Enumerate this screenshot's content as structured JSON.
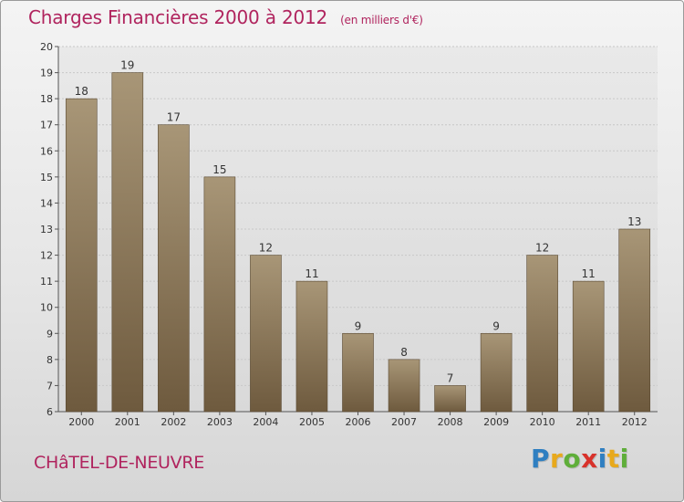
{
  "title": "Charges Financières 2000 à 2012",
  "unit_note": "(en milliers d'€)",
  "place": "CHâTEL-DE-NEUVRE",
  "logo": {
    "letters": [
      "P",
      "r",
      "o",
      "x",
      "i",
      "t",
      "i"
    ],
    "colors": [
      "#2f7fc1",
      "#e8a91c",
      "#5fae3a",
      "#d8322b",
      "#2f7fc1",
      "#e8a91c",
      "#5fae3a"
    ]
  },
  "colors": {
    "title": "#b0245e",
    "bar_top": "#a89677",
    "bar_bottom": "#6e5a3e",
    "grid": "#c8c8c8",
    "axis_text": "#333333"
  },
  "chart_data": {
    "type": "bar",
    "title": "Charges Financières 2000 à 2012",
    "xlabel": "",
    "ylabel": "",
    "categories": [
      "2000",
      "2001",
      "2002",
      "2003",
      "2004",
      "2005",
      "2006",
      "2007",
      "2008",
      "2009",
      "2010",
      "2011",
      "2012"
    ],
    "values": [
      18,
      19,
      17,
      15,
      12,
      11,
      9,
      8,
      7,
      9,
      12,
      11,
      13
    ],
    "ylim": [
      6,
      20
    ],
    "yticks": [
      6,
      7,
      8,
      9,
      10,
      11,
      12,
      13,
      14,
      15,
      16,
      17,
      18,
      19,
      20
    ],
    "grid": true,
    "legend": "none"
  }
}
